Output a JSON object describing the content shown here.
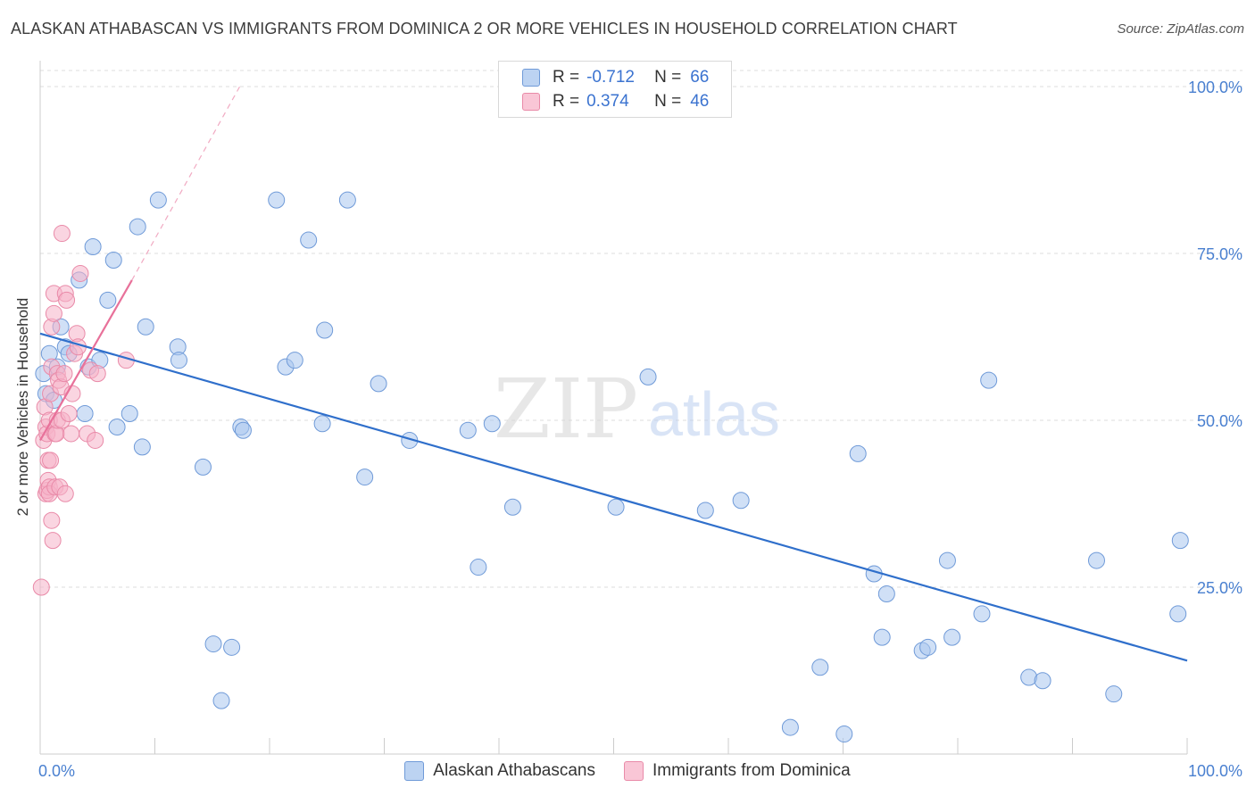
{
  "title": "ALASKAN ATHABASCAN VS IMMIGRANTS FROM DOMINICA 2 OR MORE VEHICLES IN HOUSEHOLD CORRELATION CHART",
  "source": "Source: ZipAtlas.com",
  "watermark": {
    "zip": "ZIP",
    "atlas": "atlas"
  },
  "legend": {
    "rows": [
      {
        "r_label": "R =",
        "r_value": "-0.712",
        "n_label": "N =",
        "n_value": "66"
      },
      {
        "r_label": "R =",
        "r_value": "0.374",
        "n_label": "N =",
        "n_value": "46"
      }
    ]
  },
  "bottom_legend": [
    {
      "label": "Alaskan Athabascans"
    },
    {
      "label": "Immigrants from Dominica"
    }
  ],
  "chart_data": {
    "type": "scatter",
    "title": "ALASKAN ATHABASCAN VS IMMIGRANTS FROM DOMINICA 2 OR MORE VEHICLES IN HOUSEHOLD CORRELATION CHART",
    "xlabel": "",
    "ylabel": "2 or more Vehicles in Household",
    "xlim": [
      0,
      100
    ],
    "ylim": [
      0,
      100
    ],
    "x_tick_labels": [
      "0.0%",
      "100.0%"
    ],
    "y_ticks": [
      25,
      50,
      75,
      100
    ],
    "y_tick_labels": [
      "25.0%",
      "50.0%",
      "75.0%",
      "100.0%"
    ],
    "grid": true,
    "legend_position": "top-center",
    "series": [
      {
        "name": "Alaskan Athabascans",
        "color": "#a9c6ee",
        "edge_color": "#6f9ad8",
        "trend": {
          "x": [
            0,
            100
          ],
          "y": [
            63.0,
            14.0
          ],
          "color": "#2f6fcb"
        },
        "points": [
          [
            0.3,
            57
          ],
          [
            0.5,
            54
          ],
          [
            0.8,
            60
          ],
          [
            1.2,
            53
          ],
          [
            1.5,
            58
          ],
          [
            1.8,
            64
          ],
          [
            2.2,
            61
          ],
          [
            2.5,
            60
          ],
          [
            3.4,
            71
          ],
          [
            3.9,
            51
          ],
          [
            4.2,
            58
          ],
          [
            4.6,
            76
          ],
          [
            5.2,
            59
          ],
          [
            5.9,
            68
          ],
          [
            6.4,
            74
          ],
          [
            6.7,
            49
          ],
          [
            7.8,
            51
          ],
          [
            8.5,
            79
          ],
          [
            8.9,
            46
          ],
          [
            9.2,
            64
          ],
          [
            10.3,
            83
          ],
          [
            12.0,
            61
          ],
          [
            12.1,
            59
          ],
          [
            14.2,
            43
          ],
          [
            15.1,
            16.5
          ],
          [
            15.8,
            8
          ],
          [
            16.7,
            16
          ],
          [
            17.5,
            49
          ],
          [
            17.7,
            48.5
          ],
          [
            20.6,
            83
          ],
          [
            21.4,
            58
          ],
          [
            22.2,
            59
          ],
          [
            23.4,
            77
          ],
          [
            24.6,
            49.5
          ],
          [
            24.8,
            63.5
          ],
          [
            26.8,
            83
          ],
          [
            28.3,
            41.5
          ],
          [
            29.5,
            55.5
          ],
          [
            32.2,
            47
          ],
          [
            37.3,
            48.5
          ],
          [
            38.2,
            28
          ],
          [
            39.4,
            49.5
          ],
          [
            41.2,
            37
          ],
          [
            50.2,
            37
          ],
          [
            53.0,
            56.5
          ],
          [
            58.0,
            36.5
          ],
          [
            61.1,
            38
          ],
          [
            65.4,
            4
          ],
          [
            68.0,
            13
          ],
          [
            70.1,
            3
          ],
          [
            71.3,
            45
          ],
          [
            72.7,
            27
          ],
          [
            73.4,
            17.5
          ],
          [
            73.8,
            24
          ],
          [
            76.9,
            15.5
          ],
          [
            77.4,
            16
          ],
          [
            79.1,
            29
          ],
          [
            79.5,
            17.5
          ],
          [
            82.1,
            21
          ],
          [
            82.7,
            56
          ],
          [
            86.2,
            11.5
          ],
          [
            87.4,
            11
          ],
          [
            92.1,
            29
          ],
          [
            93.6,
            9
          ],
          [
            99.2,
            21
          ],
          [
            99.4,
            32
          ]
        ]
      },
      {
        "name": "Immigrants from Dominica",
        "color": "#f5b3c8",
        "edge_color": "#e98aa8",
        "trend": {
          "x": [
            0,
            8.0
          ],
          "y": [
            47.0,
            71.0
          ],
          "color": "#e8719a",
          "dash_to": {
            "x": 17.4,
            "y": 100
          }
        },
        "points": [
          [
            0.1,
            25
          ],
          [
            0.3,
            47
          ],
          [
            0.4,
            52
          ],
          [
            0.5,
            39
          ],
          [
            0.5,
            49
          ],
          [
            0.6,
            48
          ],
          [
            0.6,
            39.5
          ],
          [
            0.7,
            44
          ],
          [
            0.7,
            41
          ],
          [
            0.8,
            40
          ],
          [
            0.8,
            39
          ],
          [
            0.8,
            50
          ],
          [
            0.9,
            44
          ],
          [
            0.9,
            54
          ],
          [
            1.0,
            58
          ],
          [
            1.0,
            64
          ],
          [
            1.0,
            35
          ],
          [
            1.1,
            32
          ],
          [
            1.2,
            66
          ],
          [
            1.2,
            69
          ],
          [
            1.3,
            48
          ],
          [
            1.3,
            40
          ],
          [
            1.4,
            48
          ],
          [
            1.5,
            57
          ],
          [
            1.5,
            50
          ],
          [
            1.6,
            56
          ],
          [
            1.7,
            40
          ],
          [
            1.8,
            55
          ],
          [
            1.9,
            78
          ],
          [
            1.9,
            50
          ],
          [
            2.1,
            57
          ],
          [
            2.2,
            39
          ],
          [
            2.2,
            69
          ],
          [
            2.3,
            68
          ],
          [
            2.5,
            51
          ],
          [
            2.7,
            48
          ],
          [
            2.8,
            54
          ],
          [
            3.0,
            60
          ],
          [
            3.2,
            63
          ],
          [
            3.3,
            61
          ],
          [
            3.5,
            72
          ],
          [
            4.1,
            48
          ],
          [
            4.4,
            57.5
          ],
          [
            4.8,
            47
          ],
          [
            5.0,
            57
          ],
          [
            7.5,
            59
          ]
        ]
      }
    ]
  }
}
